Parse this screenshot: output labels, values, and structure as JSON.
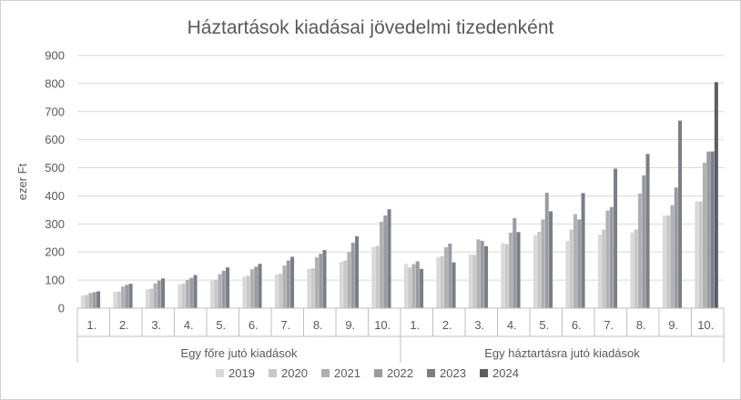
{
  "chart_data": {
    "type": "bar",
    "title": "Háztartások kiadásai jövedelmi tizedenként",
    "ylabel": "ezer Ft",
    "xlabel": "",
    "ylim": [
      0,
      900
    ],
    "yticks": [
      0,
      100,
      200,
      300,
      400,
      500,
      600,
      700,
      800,
      900
    ],
    "grid": true,
    "legend_position": "bottom",
    "groups": [
      {
        "name": "Egy főre jutó kiadások",
        "categories": [
          "1.",
          "2.",
          "3.",
          "4.",
          "5.",
          "6.",
          "7.",
          "8.",
          "9.",
          "10."
        ]
      },
      {
        "name": "Egy háztartásra jutó kiadások",
        "categories": [
          "1.",
          "2.",
          "3.",
          "4.",
          "5.",
          "6.",
          "7.",
          "8.",
          "9.",
          "10."
        ]
      }
    ],
    "series": [
      {
        "name": "2019",
        "color": "#d9d9d9",
        "values": [
          46,
          58,
          68,
          84,
          100,
          112,
          120,
          140,
          165,
          218,
          158,
          182,
          192,
          232,
          260,
          240,
          262,
          270,
          330,
          380
        ]
      },
      {
        "name": "2020",
        "color": "#c8c8c8",
        "values": [
          47,
          59,
          69,
          88,
          101,
          115,
          122,
          142,
          170,
          222,
          145,
          185,
          190,
          228,
          272,
          280,
          280,
          280,
          330,
          380
        ]
      },
      {
        "name": "2021",
        "color": "#b0b0b0",
        "values": [
          54,
          77,
          88,
          101,
          121,
          139,
          152,
          181,
          200,
          308,
          157,
          217,
          245,
          269,
          316,
          335,
          348,
          408,
          367,
          518
        ]
      },
      {
        "name": "2022",
        "color": "#999ba3",
        "values": [
          57,
          83,
          98,
          108,
          133,
          148,
          170,
          194,
          233,
          330,
          167,
          230,
          240,
          321,
          411,
          316,
          360,
          473,
          430,
          558
        ]
      },
      {
        "name": "2023",
        "color": "#7b7d87",
        "values": [
          60,
          87,
          106,
          118,
          145,
          158,
          183,
          207,
          256,
          352,
          140,
          163,
          221,
          271,
          345,
          410,
          497,
          549,
          668,
          558
        ]
      },
      {
        "name": "2024",
        "color": "#5a5c66",
        "values": [
          null,
          null,
          null,
          null,
          null,
          null,
          null,
          null,
          null,
          null,
          null,
          null,
          null,
          null,
          null,
          null,
          null,
          null,
          null,
          805
        ]
      }
    ]
  }
}
